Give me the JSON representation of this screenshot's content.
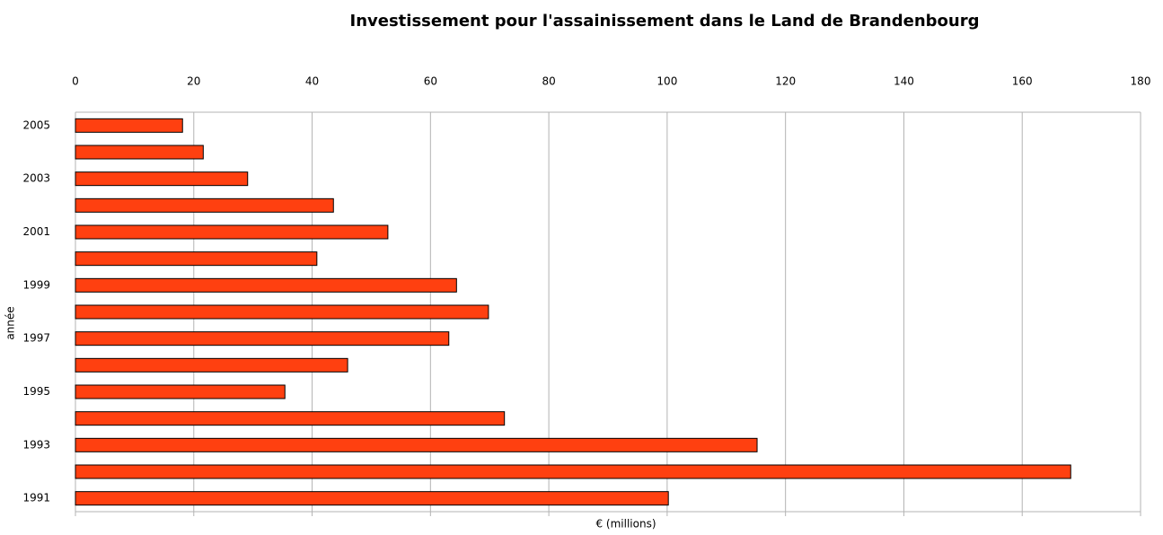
{
  "chart_data": {
    "type": "barh",
    "title": "Investissement pour l'assainissement dans le Land de Brandenbourg",
    "xlabel": "€ (millions)",
    "ylabel": "année",
    "categories": [
      "2005",
      null,
      "2003",
      null,
      "2001",
      null,
      "1999",
      null,
      "1997",
      null,
      "1995",
      null,
      "1993",
      null,
      "1991"
    ],
    "values": [
      18.1,
      21.6,
      29.1,
      43.6,
      52.8,
      40.8,
      64.4,
      69.8,
      63.1,
      46.0,
      35.4,
      72.5,
      115.2,
      168.2,
      100.2
    ],
    "color": "#ff4010",
    "xlim": [
      0,
      180
    ],
    "xticks": [
      0,
      20,
      40,
      60,
      80,
      100,
      120,
      140,
      160,
      180
    ],
    "grid": true
  }
}
